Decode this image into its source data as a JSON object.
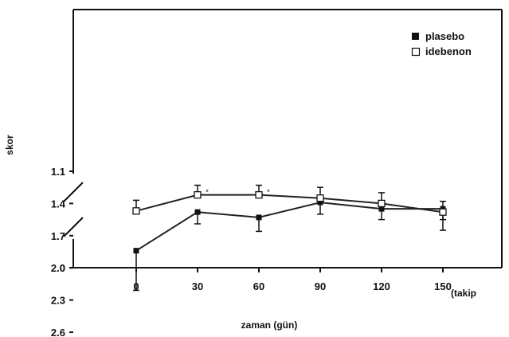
{
  "chart_data": {
    "type": "line",
    "title": "",
    "xlabel": "zaman (gün)",
    "x_unit_label": "(takip",
    "ylabel": "skor",
    "x": [
      0,
      30,
      60,
      90,
      120,
      150
    ],
    "x_tick_labels": [
      "0",
      "30",
      "60",
      "90",
      "120",
      "150"
    ],
    "y_tick_labels": [
      "2.6",
      "2.3",
      "2.0",
      "1.7",
      "1.4",
      "1.1",
      "0"
    ],
    "y_ticks": [
      2.6,
      2.3,
      2.0,
      1.7,
      1.4,
      1.1
    ],
    "y_zero_label": "0",
    "ylim": [
      1.1,
      2.6
    ],
    "axis_break": true,
    "legend_position": "top-right",
    "series": [
      {
        "name": "plasebo",
        "marker": "filled-square",
        "color": "#222222",
        "values": [
          1.84,
          1.48,
          1.53,
          1.39,
          1.45,
          1.45
        ],
        "error_plus": [
          0.37,
          0.11,
          0.13,
          0.11,
          0.1,
          0.1
        ],
        "error_minus": [
          0.37,
          0.11,
          0.13,
          0.11,
          0.1,
          0.11
        ]
      },
      {
        "name": "idebenon",
        "marker": "open-square",
        "color": "#222222",
        "values": [
          1.47,
          1.32,
          1.32,
          1.35,
          1.4,
          1.48
        ],
        "error_plus": [
          0.1,
          0.09,
          0.09,
          0.1,
          0.1,
          0.17
        ],
        "error_minus": [
          0.1,
          0.09,
          0.09,
          0.1,
          0.1,
          0.1
        ]
      }
    ],
    "annotations": [
      {
        "x": 30,
        "text": "*"
      },
      {
        "x": 60,
        "text": "*"
      }
    ]
  }
}
